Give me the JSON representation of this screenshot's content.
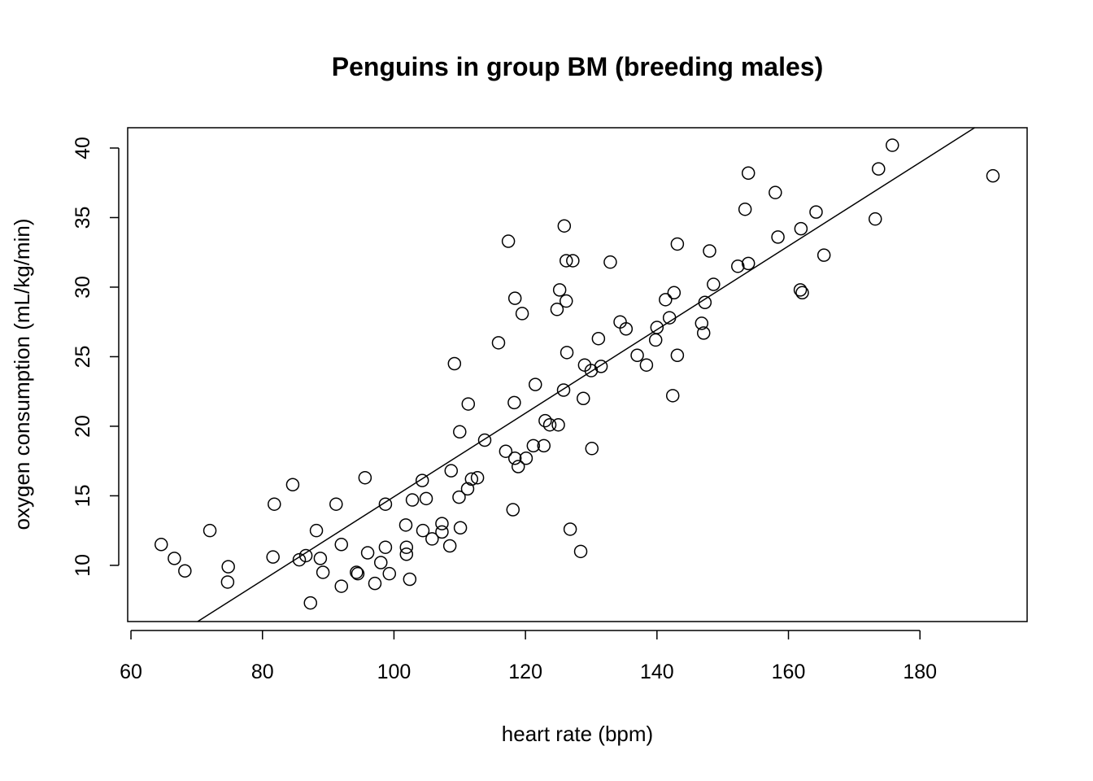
{
  "chart_data": {
    "type": "scatter",
    "title": "Penguins in group BM (breeding males)",
    "xlabel": "heart rate (bpm)",
    "ylabel": "oxygen consumption (mL/kg/min)",
    "xlim": [
      59.5,
      196.3
    ],
    "ylim": [
      5.96,
      41.46
    ],
    "xticks": [
      "60",
      "80",
      "100",
      "120",
      "140",
      "160",
      "180"
    ],
    "yticks": [
      "10",
      "15",
      "20",
      "25",
      "30",
      "35",
      "40"
    ],
    "grid": false,
    "regression_line": {
      "slope": 0.3004,
      "intercept": -15.11
    },
    "x": [
      64.6,
      66.6,
      68.2,
      72.0,
      74.7,
      74.8,
      81.8,
      81.6,
      84.6,
      85.6,
      86.6,
      87.3,
      88.2,
      88.8,
      89.2,
      91.2,
      92.0,
      92.0,
      94.3,
      94.5,
      95.6,
      96.0,
      97.1,
      98.0,
      98.7,
      98.7,
      99.3,
      101.8,
      101.9,
      101.9,
      102.4,
      102.8,
      104.3,
      104.4,
      104.9,
      105.8,
      107.3,
      107.3,
      108.5,
      108.7,
      109.2,
      109.9,
      110.0,
      110.1,
      111.2,
      111.3,
      111.8,
      112.7,
      113.8,
      115.9,
      117.0,
      117.4,
      118.1,
      118.3,
      118.4,
      118.4,
      118.9,
      119.5,
      120.1,
      121.2,
      121.5,
      122.8,
      123.0,
      123.7,
      124.8,
      125.0,
      125.2,
      125.8,
      125.9,
      126.2,
      126.2,
      126.3,
      126.8,
      127.2,
      128.4,
      128.8,
      129.0,
      130.0,
      130.1,
      131.1,
      131.5,
      132.9,
      134.4,
      135.3,
      137.0,
      138.4,
      139.8,
      140.0,
      141.3,
      141.9,
      142.4,
      142.6,
      143.1,
      143.1,
      146.8,
      147.1,
      147.3,
      148.0,
      148.6,
      152.3,
      153.4,
      153.9,
      153.9,
      158.0,
      158.4,
      161.8,
      161.9,
      162.1,
      164.2,
      165.4,
      173.2,
      173.7,
      175.8,
      191.1
    ],
    "y": [
      11.5,
      10.5,
      9.6,
      12.5,
      8.8,
      9.9,
      14.4,
      10.6,
      15.8,
      10.4,
      10.7,
      7.3,
      12.5,
      10.5,
      9.5,
      14.4,
      11.5,
      8.5,
      9.5,
      9.4,
      16.3,
      10.9,
      8.7,
      10.2,
      14.4,
      11.3,
      9.4,
      12.9,
      11.3,
      10.8,
      9.0,
      14.7,
      16.1,
      12.5,
      14.8,
      11.9,
      13.0,
      12.4,
      11.4,
      16.8,
      24.5,
      14.9,
      19.6,
      12.7,
      15.5,
      21.6,
      16.2,
      16.3,
      19.0,
      26.0,
      18.2,
      33.3,
      14.0,
      21.7,
      17.7,
      29.2,
      17.1,
      28.1,
      17.7,
      18.6,
      23.0,
      18.6,
      20.4,
      20.1,
      28.4,
      20.1,
      29.8,
      22.6,
      34.4,
      31.9,
      29.0,
      25.3,
      12.6,
      31.9,
      11.0,
      22.0,
      24.4,
      24.0,
      18.4,
      26.3,
      24.3,
      31.8,
      27.5,
      27.0,
      25.1,
      24.4,
      26.2,
      27.1,
      29.1,
      27.8,
      22.2,
      29.6,
      33.1,
      25.1,
      27.4,
      26.7,
      28.9,
      32.6,
      30.2,
      31.5,
      35.6,
      38.2,
      31.7,
      36.8,
      33.6,
      29.8,
      34.2,
      29.6,
      35.4,
      32.3,
      34.9,
      38.5,
      40.2,
      38.0
    ]
  }
}
